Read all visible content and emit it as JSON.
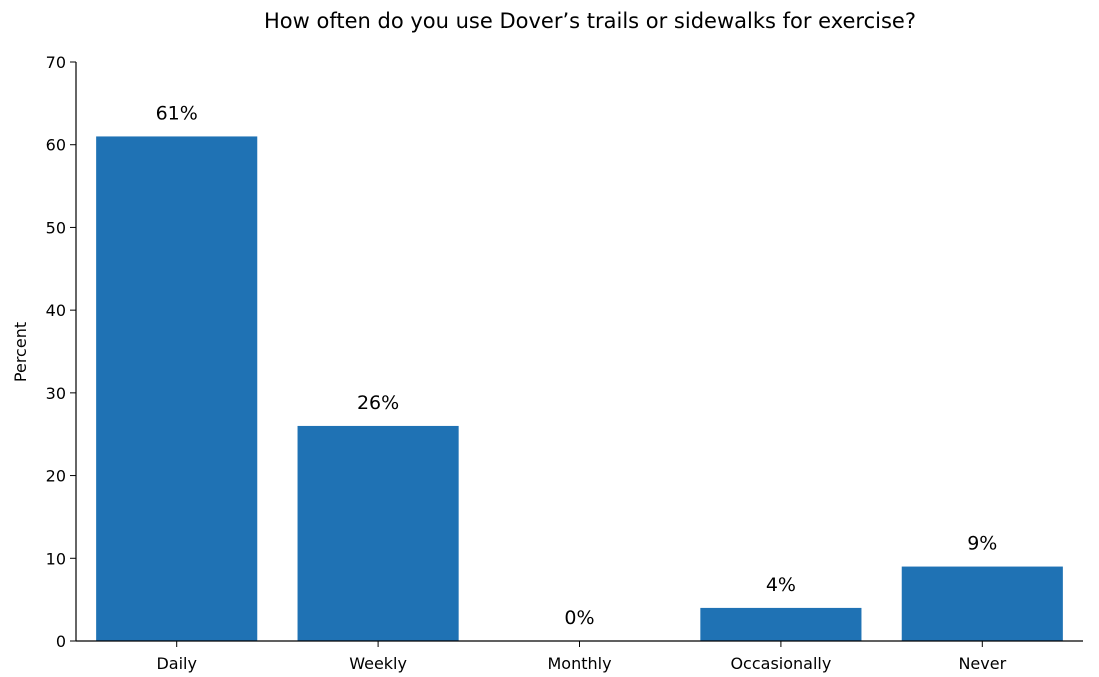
{
  "chart_data": {
    "type": "bar",
    "title": "How often do you use Dover’s trails or sidewalks for exercise?",
    "xlabel": "",
    "ylabel": "Percent",
    "categories": [
      "Daily",
      "Weekly",
      "Monthly",
      "Occasionally",
      "Never"
    ],
    "values": [
      61,
      26,
      0,
      4,
      9
    ],
    "data_labels": [
      "61%",
      "26%",
      "0%",
      "4%",
      "9%"
    ],
    "ylim": [
      0,
      70
    ],
    "yticks": [
      0,
      10,
      20,
      30,
      40,
      50,
      60,
      70
    ],
    "grid": false,
    "legend": "none",
    "bar_color": "#1f72b4"
  }
}
